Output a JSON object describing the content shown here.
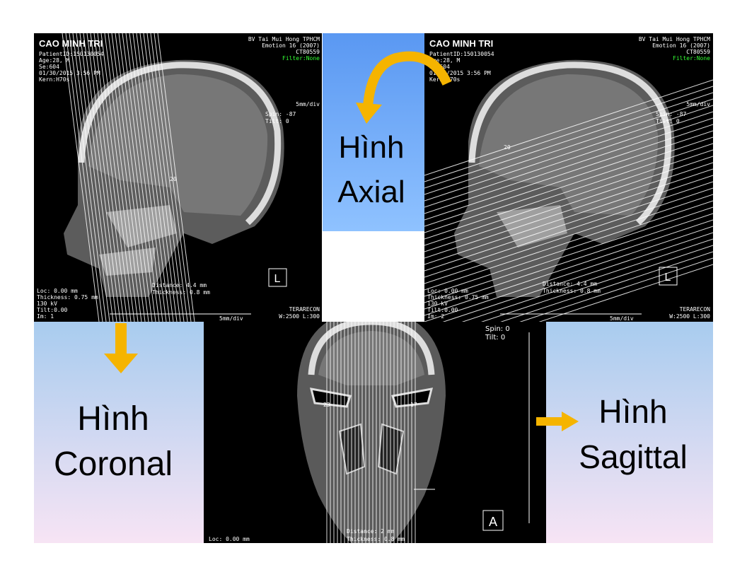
{
  "slide": {
    "axial_label": [
      "Hình",
      "Axial"
    ],
    "coronal_label": [
      "Hình",
      "Coronal"
    ],
    "sagittal_label": [
      "Hình",
      "Sagittal"
    ]
  },
  "panels": [
    {
      "patient": "CAO MINH TRI",
      "info": [
        "PatientID:150130054",
        "Age:28, M",
        "Se:604",
        "01/30/2015 3:56 PM",
        "Kern:H70s"
      ],
      "hospital": [
        "BV Tai Mui Hong TPHCM",
        "Emotion 16 (2007)",
        "CT80559",
        "Filter:None"
      ],
      "scale": "5mm/div",
      "orientation": [
        "Spin: -87",
        "Tilt: 0"
      ],
      "slice": "20",
      "measure": [
        "Distance: 4.4 mm",
        "Thickness: 0.8 mm"
      ],
      "footer": [
        "Loc: 0.00 mm",
        "Thickness: 0.75 mm",
        "130 kV",
        "Tilt:0.00",
        "Im: 1"
      ],
      "scale_bottom": "5mm/div",
      "vendor": "TERARECON",
      "window": "W:2500 L:300",
      "marker": "L"
    },
    {
      "patient": "CAO MINH TRI",
      "info": [
        "PatientID:150130054",
        "Age:28, M",
        "Se:604",
        "01/30/2015 3:56 PM",
        "Kern:H70s"
      ],
      "hospital": [
        "BV Tai Mui Hong TPHCM",
        "Emotion 16 (2007)",
        "CT80559",
        "Filter:None"
      ],
      "scale": "5mm/div",
      "orientation": [
        "Spin: -87",
        "Tilt: 0"
      ],
      "slice": "20",
      "measure": [
        "Distance: 4.4 mm",
        "Thickness: 0.8 mm"
      ],
      "footer": [
        "Loc: 0.00 mm",
        "Thickness: 0.75 mm",
        "130 kV",
        "Tilt:0.00",
        "Im: 2"
      ],
      "scale_bottom": "5mm/div",
      "vendor": "TERARECON",
      "window": "W:2500 L:300",
      "marker": "L"
    },
    {
      "orientation": [
        "Spin: 0",
        "Tilt: 0"
      ],
      "slice_left": "23",
      "slice_right": "17",
      "loc": "Loc: 0.00 mm",
      "measure": [
        "Distance: 2 mm",
        "Thickness: 0.8 mm"
      ],
      "marker": "A"
    }
  ]
}
